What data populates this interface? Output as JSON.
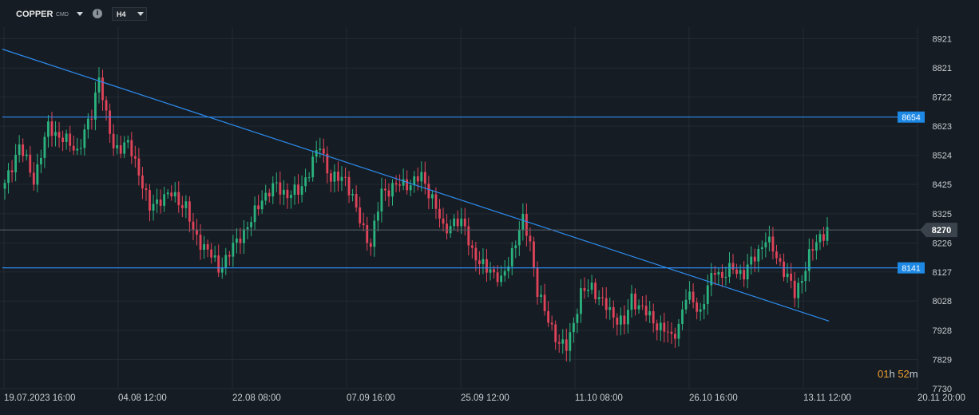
{
  "toolbar": {
    "symbol": "COPPER",
    "symbol_suffix": "CMD",
    "info_icon": "info-icon",
    "timeframe": "H4"
  },
  "timer": {
    "hours": "01",
    "hours_unit": "h",
    "minutes": "52",
    "minutes_unit": "m"
  },
  "colors": {
    "background": "#161c23",
    "grid": "#222a33",
    "bull": "#2bb37f",
    "bear": "#e0445a",
    "trendline": "#2d8cf0",
    "level_label": "#1e88e5",
    "current_price_label": "#3a434c"
  },
  "chart_data": {
    "type": "candlestick",
    "instrument": "COPPER",
    "timeframe": "H4",
    "ylim": [
      7730,
      8960
    ],
    "y_ticks": [
      8921,
      8821,
      8722,
      8623,
      8524,
      8425,
      8325,
      8226,
      8127,
      8028,
      7928,
      7829,
      7730
    ],
    "x_ticks": [
      "19.07.2023  16:00",
      "04.08  12:00",
      "22.08  08:00",
      "07.09  16:00",
      "25.09  12:00",
      "11.10  08:00",
      "26.10  16:00",
      "13.11  12:00",
      "20.11  20:00"
    ],
    "current_price": 8270,
    "levels": [
      {
        "label": "8654",
        "value": 8654
      },
      {
        "label": "8141",
        "value": 8141
      }
    ],
    "trendline": {
      "start_value": 8885,
      "end_value": 7960,
      "start_date": "19.07.2023",
      "end_date": "15.11"
    },
    "close_path": [
      [
        0,
        8420
      ],
      [
        4,
        8560
      ],
      [
        8,
        8440
      ],
      [
        12,
        8620
      ],
      [
        16,
        8580
      ],
      [
        20,
        8540
      ],
      [
        24,
        8660
      ],
      [
        26,
        8800
      ],
      [
        28,
        8650
      ],
      [
        30,
        8550
      ],
      [
        34,
        8560
      ],
      [
        37,
        8470
      ],
      [
        40,
        8340
      ],
      [
        43,
        8380
      ],
      [
        46,
        8390
      ],
      [
        50,
        8350
      ],
      [
        52,
        8260
      ],
      [
        56,
        8200
      ],
      [
        59,
        8140
      ],
      [
        62,
        8190
      ],
      [
        65,
        8250
      ],
      [
        68,
        8300
      ],
      [
        71,
        8380
      ],
      [
        75,
        8420
      ],
      [
        78,
        8390
      ],
      [
        81,
        8400
      ],
      [
        84,
        8470
      ],
      [
        87,
        8560
      ],
      [
        90,
        8440
      ],
      [
        94,
        8450
      ],
      [
        98,
        8300
      ],
      [
        101,
        8220
      ],
      [
        104,
        8400
      ],
      [
        108,
        8420
      ],
      [
        112,
        8430
      ],
      [
        115,
        8450
      ],
      [
        118,
        8380
      ],
      [
        121,
        8270
      ],
      [
        124,
        8300
      ],
      [
        127,
        8280
      ],
      [
        129,
        8200
      ],
      [
        131,
        8150
      ],
      [
        134,
        8140
      ],
      [
        137,
        8090
      ],
      [
        140,
        8200
      ],
      [
        143,
        8300
      ],
      [
        145,
        8230
      ],
      [
        147,
        8060
      ],
      [
        149,
        7990
      ],
      [
        151,
        7940
      ],
      [
        153,
        7880
      ],
      [
        155,
        7870
      ],
      [
        157,
        7960
      ],
      [
        159,
        8050
      ],
      [
        162,
        8080
      ],
      [
        165,
        8020
      ],
      [
        168,
        7980
      ],
      [
        171,
        7950
      ],
      [
        173,
        8040
      ],
      [
        176,
        8000
      ],
      [
        179,
        7960
      ],
      [
        182,
        7930
      ],
      [
        184,
        7900
      ],
      [
        186,
        7950
      ],
      [
        188,
        8040
      ],
      [
        190,
        8030
      ],
      [
        192,
        7990
      ],
      [
        194,
        8070
      ],
      [
        196,
        8140
      ],
      [
        198,
        8110
      ],
      [
        201,
        8140
      ],
      [
        204,
        8120
      ],
      [
        207,
        8180
      ],
      [
        210,
        8240
      ],
      [
        213,
        8180
      ],
      [
        216,
        8110
      ],
      [
        218,
        8050
      ],
      [
        220,
        8110
      ],
      [
        222,
        8180
      ],
      [
        225,
        8250
      ],
      [
        227,
        8270
      ]
    ]
  }
}
